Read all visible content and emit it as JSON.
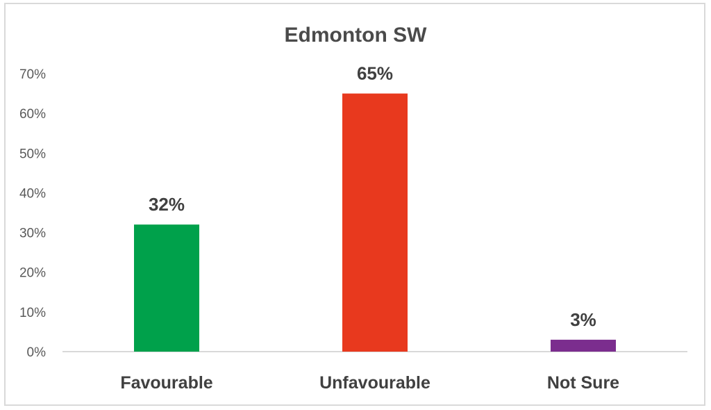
{
  "chart_data": {
    "type": "bar",
    "title": "Edmonton SW",
    "categories": [
      "Favourable",
      "Unfavourable",
      "Not Sure"
    ],
    "values": [
      32,
      65,
      3
    ],
    "data_labels": [
      "32%",
      "65%",
      "3%"
    ],
    "colors": [
      "#00a14b",
      "#e8391e",
      "#7b2d8e"
    ],
    "ylim": [
      0,
      70
    ],
    "yticks": [
      0,
      10,
      20,
      30,
      40,
      50,
      60,
      70
    ],
    "ytick_labels": [
      "0%",
      "10%",
      "20%",
      "30%",
      "40%",
      "50%",
      "60%",
      "70%"
    ],
    "grid": false,
    "legend": "none",
    "xlabel": "",
    "ylabel": ""
  }
}
